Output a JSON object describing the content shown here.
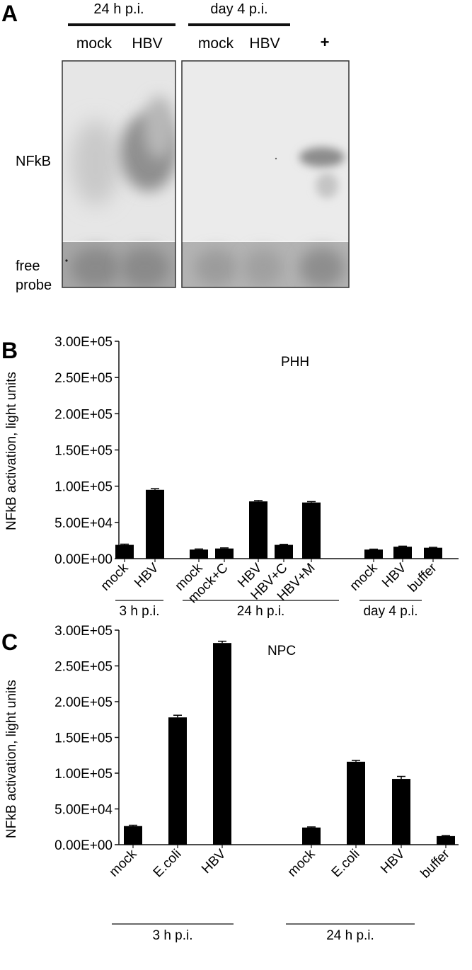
{
  "panel_a": {
    "letter": "A",
    "groups": [
      {
        "label": "24 h p.i.",
        "lanes": [
          "mock",
          "HBV"
        ]
      },
      {
        "label": "day 4 p.i.",
        "lanes": [
          "mock",
          "HBV",
          "+"
        ]
      }
    ],
    "row_labels": {
      "nfkb": "NFkB",
      "free_line1": "free",
      "free_line2": "probe"
    }
  },
  "chart_data": [
    {
      "type": "bar",
      "panel_letter": "B",
      "title": "PHH",
      "xlabel": "",
      "ylabel": "NFkB activation, light units",
      "ylim": [
        0,
        300000
      ],
      "y_ticks": [
        "0.00E+00",
        "5.00E+04",
        "1.00E+05",
        "1.50E+05",
        "2.00E+05",
        "2.50E+05",
        "3.00E+05"
      ],
      "grid": false,
      "categories": [
        "mock",
        "HBV",
        "mock",
        "mock+C",
        "HBV",
        "HBV+C",
        "HBV+M",
        "mock",
        "HBV",
        "buffer"
      ],
      "values": [
        19000,
        95000,
        12500,
        14000,
        79000,
        19000,
        77500,
        12500,
        16500,
        15000
      ],
      "errors": [
        1000,
        1500,
        800,
        800,
        1200,
        700,
        1200,
        600,
        700,
        600
      ],
      "groups": [
        {
          "label": "3 h p.i.",
          "from": 0,
          "to": 1
        },
        {
          "label": "24 h p.i.",
          "from": 2,
          "to": 6
        },
        {
          "label": "day 4 p.i.",
          "from": 7,
          "to": 8
        }
      ]
    },
    {
      "type": "bar",
      "panel_letter": "C",
      "title": "NPC",
      "xlabel": "",
      "ylabel": "NFkB activation, light units",
      "ylim": [
        0,
        300000
      ],
      "y_ticks": [
        "0.00E+00",
        "5.00E+04",
        "1.00E+05",
        "1.50E+05",
        "2.00E+05",
        "2.50E+05",
        "3.00E+05"
      ],
      "grid": false,
      "categories": [
        "mock",
        "E.coli",
        "HBV",
        "mock",
        "E.coli",
        "HBV",
        "buffer"
      ],
      "values": [
        26000,
        178000,
        282000,
        24000,
        116000,
        92000,
        12000
      ],
      "errors": [
        1200,
        3000,
        2500,
        800,
        1800,
        3500,
        700
      ],
      "groups": [
        {
          "label": "3 h p.i.",
          "from": 0,
          "to": 2
        },
        {
          "label": "24 h p.i.",
          "from": 3,
          "to": 5
        }
      ]
    }
  ]
}
